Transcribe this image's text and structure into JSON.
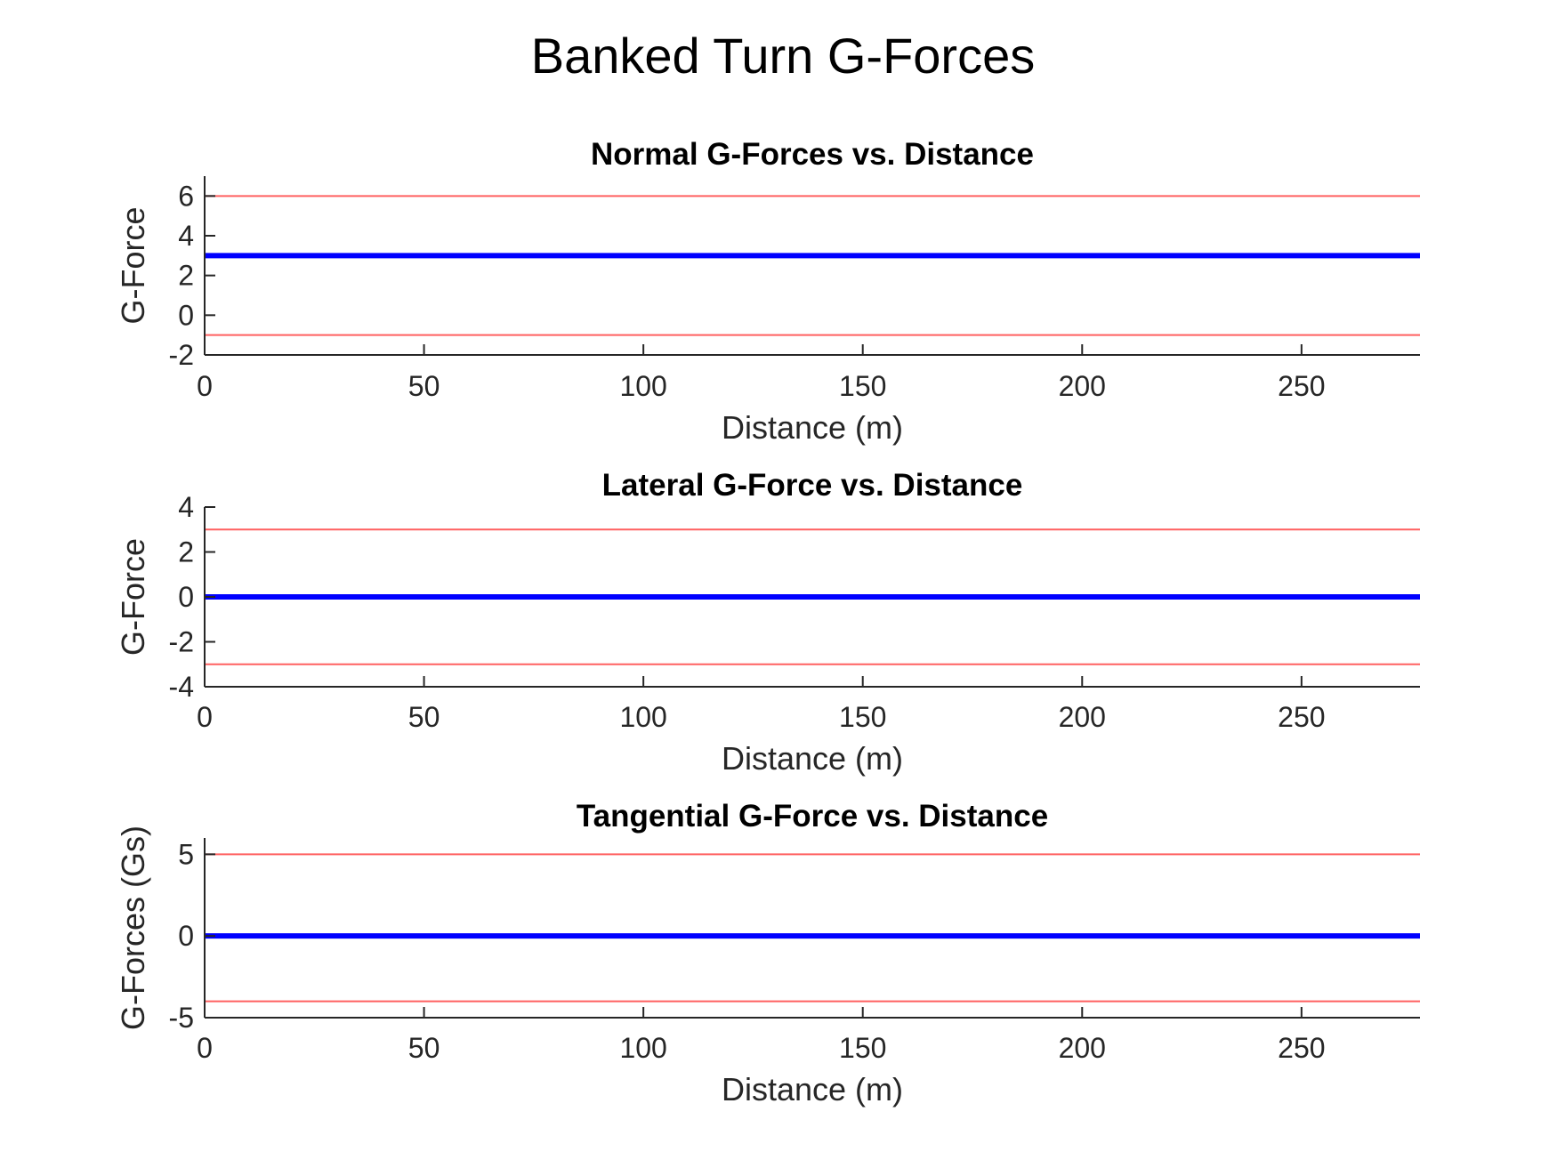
{
  "figure": {
    "title": "Banked Turn G-Forces"
  },
  "chart_data": [
    {
      "type": "line",
      "title": "Normal G-Forces vs. Distance",
      "xlabel": "Distance (m)",
      "ylabel": "G-Force",
      "xlim": [
        0,
        277
      ],
      "ylim": [
        -2,
        7
      ],
      "xticks": [
        0,
        50,
        100,
        150,
        200,
        250
      ],
      "yticks": [
        -2,
        0,
        2,
        4,
        6
      ],
      "grid": false,
      "series": [
        {
          "color": "#0000ff",
          "x": [
            0,
            277
          ],
          "y": [
            3,
            3
          ]
        }
      ],
      "limit_lines": [
        {
          "color": "#ff6060",
          "y": 6
        },
        {
          "color": "#ff6060",
          "y": -1
        }
      ]
    },
    {
      "type": "line",
      "title": "Lateral G-Force vs. Distance",
      "xlabel": "Distance (m)",
      "ylabel": "G-Force",
      "xlim": [
        0,
        277
      ],
      "ylim": [
        -4,
        4
      ],
      "xticks": [
        0,
        50,
        100,
        150,
        200,
        250
      ],
      "yticks": [
        -4,
        -2,
        0,
        2,
        4
      ],
      "grid": false,
      "series": [
        {
          "color": "#0000ff",
          "x": [
            0,
            277
          ],
          "y": [
            0,
            0
          ]
        }
      ],
      "limit_lines": [
        {
          "color": "#ff6060",
          "y": 3
        },
        {
          "color": "#ff6060",
          "y": -3
        }
      ]
    },
    {
      "type": "line",
      "title": "Tangential G-Force vs. Distance",
      "xlabel": "Distance (m)",
      "ylabel": "G-Forces (Gs)",
      "xlim": [
        0,
        277
      ],
      "ylim": [
        -5,
        6
      ],
      "xticks": [
        0,
        50,
        100,
        150,
        200,
        250
      ],
      "yticks": [
        -5,
        0,
        5
      ],
      "grid": false,
      "series": [
        {
          "color": "#0000ff",
          "x": [
            0,
            277
          ],
          "y": [
            0,
            0
          ]
        }
      ],
      "limit_lines": [
        {
          "color": "#ff6060",
          "y": 5
        },
        {
          "color": "#ff6060",
          "y": -4
        }
      ]
    }
  ]
}
